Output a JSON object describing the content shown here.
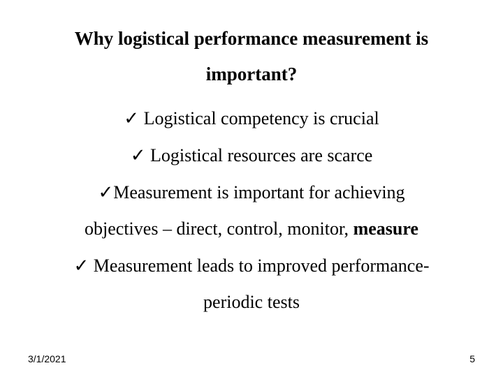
{
  "title_line1": "Why logistical performance measurement is",
  "title_line2": "important?",
  "bullets": {
    "b1": "Logistical competency is crucial",
    "b2": "Logistical resources are scarce",
    "b3_l1": "Measurement is important for achieving",
    "b3_l2_prefix": "objectives – direct, control, monitor, ",
    "b3_l2_bold": "measure",
    "b4_l1": "Measurement leads to improved performance-",
    "b4_l2": "periodic tests"
  },
  "checkmark": "✓",
  "footer_date": "3/1/2021",
  "footer_page": "5",
  "colors": {
    "background": "#ffffff",
    "text": "#000000"
  },
  "fonts": {
    "body_family": "Times New Roman",
    "title_size_pt": 27,
    "body_size_pt": 26,
    "footer_size_pt": 14
  }
}
